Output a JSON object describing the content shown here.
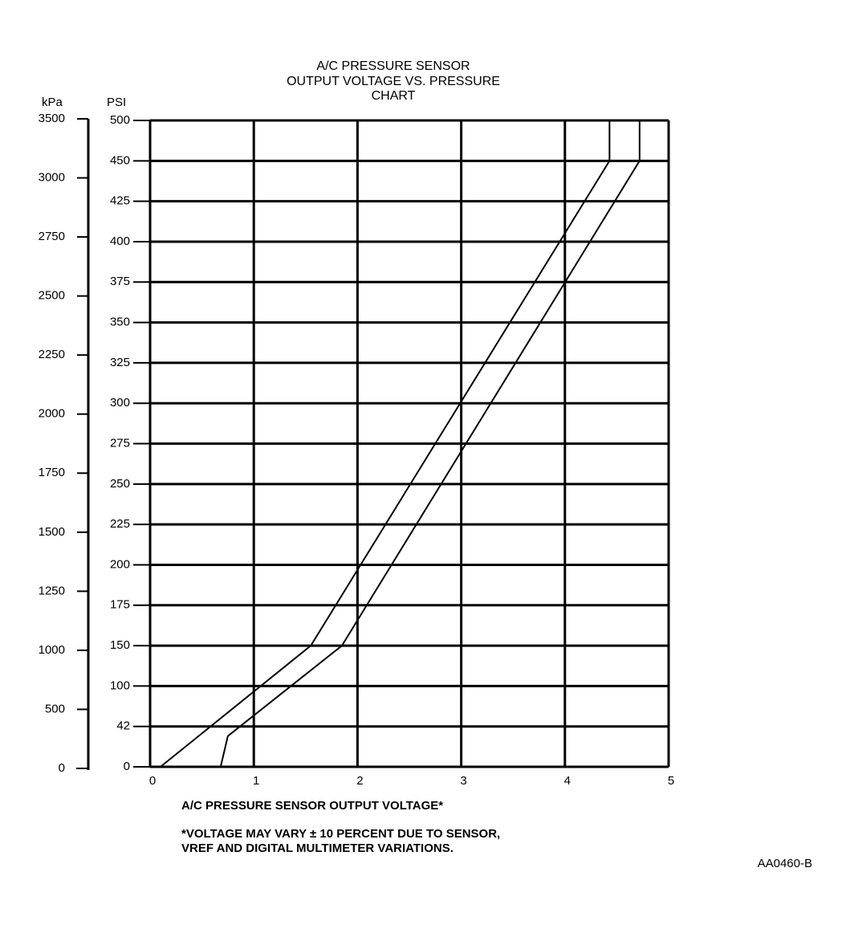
{
  "chart_data": {
    "type": "line",
    "title": [
      "A/C PRESSURE SENSOR",
      "OUTPUT VOLTAGE VS. PRESSURE",
      "CHART"
    ],
    "x_label": "A/C PRESSURE SENSOR OUTPUT VOLTAGE*",
    "y_label": "PSI",
    "y2_label": "kPa",
    "footnote": [
      "*VOLTAGE MAY VARY ± 10 PERCENT DUE TO SENSOR,",
      "VREF AND DIGITAL MULTIMETER VARIATIONS."
    ],
    "figure_id": "AA0460-B",
    "xlim": [
      0,
      5
    ],
    "xticks": [
      0,
      1,
      2,
      3,
      4,
      5
    ],
    "ylim": [
      0,
      500
    ],
    "yticks": [
      0,
      42,
      100,
      150,
      175,
      200,
      225,
      250,
      275,
      300,
      325,
      350,
      375,
      400,
      425,
      450,
      500
    ],
    "y2lim": [
      0,
      3500
    ],
    "y2ticks": [
      0,
      500,
      1000,
      1250,
      1500,
      1750,
      2000,
      2250,
      2500,
      2750,
      3000,
      3500
    ],
    "grid": true,
    "series": [
      {
        "color": "#000000",
        "x": [
          0.1,
          1.55,
          4.43,
          4.43
        ],
        "values": [
          0,
          150,
          450,
          500
        ]
      },
      {
        "color": "#000000",
        "x": [
          0.68,
          0.75,
          1.85,
          4.72,
          4.72
        ],
        "values": [
          0,
          32,
          150,
          450,
          500
        ]
      }
    ]
  }
}
